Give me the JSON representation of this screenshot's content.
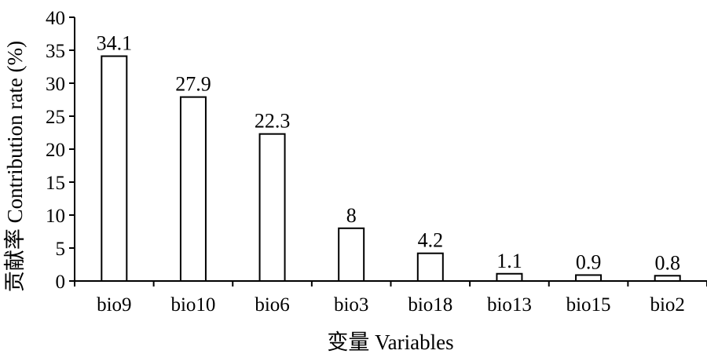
{
  "chart_data": {
    "type": "bar",
    "categories": [
      "bio9",
      "bio10",
      "bio6",
      "bio3",
      "bio18",
      "bio13",
      "bio15",
      "bio2"
    ],
    "values": [
      34.1,
      27.9,
      22.3,
      8,
      4.2,
      1.1,
      0.9,
      0.8
    ],
    "data_labels": [
      "34.1",
      "27.9",
      "22.3",
      "8",
      "4.2",
      "1.1",
      "0.9",
      "0.8"
    ],
    "title": "",
    "xlabel": "变量 Variables",
    "ylabel": "贡献率 Contribution rate (%)",
    "ylim": [
      0,
      40
    ],
    "yticks": [
      0,
      5,
      10,
      15,
      20,
      25,
      30,
      35,
      40
    ],
    "grid": false,
    "bar_color": "#ffffff",
    "edge_color": "#000000"
  }
}
